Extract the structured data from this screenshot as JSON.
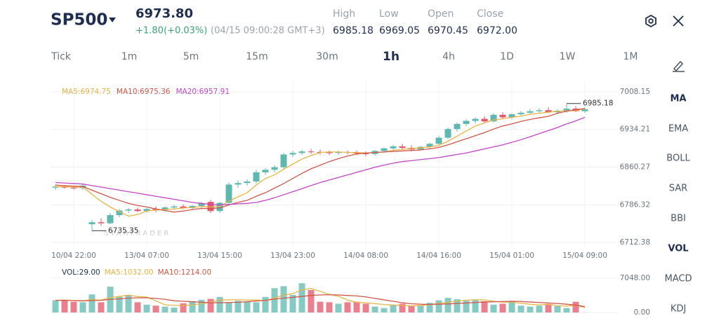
{
  "header": {
    "symbol": "SP500",
    "price": "6973.80",
    "change": "+1.80",
    "change_pct": "(+0.03%)",
    "timestamp": "(04/15 09:00:28 GMT+3)",
    "stats": [
      {
        "label": "High",
        "value": "6985.18"
      },
      {
        "label": "Low",
        "value": "6969.05"
      },
      {
        "label": "Open",
        "value": "6970.45"
      },
      {
        "label": "Close",
        "value": "6972.00"
      }
    ]
  },
  "timeframes": [
    "Tick",
    "1m",
    "5m",
    "15m",
    "30m",
    "1h",
    "4h",
    "1D",
    "1W",
    "1M"
  ],
  "indicators": [
    "MA",
    "EMA",
    "BOLL",
    "SAR",
    "BBI",
    "VOL",
    "MACD",
    "KDJ"
  ],
  "chart_data": {
    "type": "candlestick",
    "watermark": "STARTRADER",
    "up_color": "#5fb8b0",
    "down_color": "#e0566a",
    "categories": [
      null,
      null,
      "10/04 22:00",
      null,
      null,
      null,
      null,
      null,
      null,
      null,
      "13/04 07:00",
      null,
      null,
      null,
      null,
      null,
      null,
      null,
      "13/04 15:00",
      null,
      null,
      null,
      null,
      null,
      null,
      null,
      "13/04 23:00",
      null,
      null,
      null,
      null,
      null,
      null,
      null,
      "14/04 08:00",
      null,
      null,
      null,
      null,
      null,
      null,
      null,
      "14/04 16:00",
      null,
      null,
      null,
      null,
      null,
      null,
      null,
      "15/04 01:00",
      null,
      null,
      null,
      null,
      null,
      null,
      null,
      "15/04 09:00"
    ],
    "candles": [
      [
        6820,
        6826,
        6815,
        6822
      ],
      [
        6822,
        6825,
        6818,
        6820
      ],
      [
        6820,
        6824,
        6816,
        6819
      ],
      [
        6819,
        6828,
        6815,
        6824
      ],
      [
        6748,
        6756,
        6735.35,
        6752
      ],
      [
        6752,
        6760,
        6745,
        6750
      ],
      [
        6750,
        6770,
        6748,
        6766
      ],
      [
        6766,
        6778,
        6762,
        6775
      ],
      [
        6775,
        6780,
        6770,
        6777
      ],
      [
        6777,
        6781,
        6772,
        6774
      ],
      [
        6774,
        6780,
        6771,
        6778
      ],
      [
        6778,
        6783,
        6772,
        6776
      ],
      [
        6776,
        6784,
        6773,
        6781
      ],
      [
        6781,
        6786,
        6777,
        6783
      ],
      [
        6783,
        6787,
        6778,
        6780
      ],
      [
        6780,
        6786,
        6776,
        6784
      ],
      [
        6784,
        6792,
        6780,
        6789
      ],
      [
        6792,
        6796,
        6770,
        6774
      ],
      [
        6774,
        6792,
        6770,
        6790
      ],
      [
        6790,
        6830,
        6788,
        6826
      ],
      [
        6826,
        6834,
        6820,
        6829
      ],
      [
        6829,
        6836,
        6824,
        6832
      ],
      [
        6832,
        6855,
        6828,
        6850
      ],
      [
        6850,
        6858,
        6845,
        6855
      ],
      [
        6855,
        6864,
        6850,
        6860
      ],
      [
        6860,
        6888,
        6856,
        6885
      ],
      [
        6885,
        6892,
        6880,
        6888
      ],
      [
        6888,
        6894,
        6884,
        6891
      ],
      [
        6891,
        6896,
        6886,
        6890
      ],
      [
        6890,
        6895,
        6885,
        6889
      ],
      [
        6889,
        6893,
        6884,
        6888
      ],
      [
        6888,
        6892,
        6884,
        6890
      ],
      [
        6890,
        6893,
        6885,
        6889
      ],
      [
        6889,
        6893,
        6884,
        6887
      ],
      [
        6887,
        6891,
        6882,
        6886
      ],
      [
        6886,
        6894,
        6883,
        6892
      ],
      [
        6892,
        6899,
        6888,
        6897
      ],
      [
        6897,
        6904,
        6893,
        6901
      ],
      [
        6901,
        6906,
        6895,
        6898
      ],
      [
        6898,
        6903,
        6891,
        6895
      ],
      [
        6895,
        6902,
        6892,
        6900
      ],
      [
        6900,
        6908,
        6896,
        6906
      ],
      [
        6906,
        6922,
        6903,
        6918
      ],
      [
        6918,
        6938,
        6915,
        6935
      ],
      [
        6935,
        6948,
        6930,
        6945
      ],
      [
        6945,
        6954,
        6940,
        6951
      ],
      [
        6951,
        6958,
        6946,
        6955
      ],
      [
        6955,
        6960,
        6947,
        6950
      ],
      [
        6950,
        6966,
        6948,
        6963
      ],
      [
        6963,
        6968,
        6955,
        6958
      ],
      [
        6958,
        6966,
        6954,
        6964
      ],
      [
        6964,
        6970,
        6960,
        6967
      ],
      [
        6967,
        6974,
        6963,
        6970
      ],
      [
        6970,
        6976,
        6966,
        6972
      ],
      [
        6972,
        6978,
        6966,
        6968
      ],
      [
        6968,
        6974,
        6964,
        6971
      ],
      [
        6971,
        6985.18,
        6967,
        6975
      ],
      [
        6975,
        6980,
        6968,
        6970
      ],
      [
        6970,
        6977,
        6967,
        6973.8
      ]
    ],
    "high_label": "6985.18",
    "low_label": "6735.35",
    "series": [
      {
        "name": "MA5:6974.75",
        "color": "#e8b447",
        "values": [
          6822,
          6822,
          6821,
          6821,
          6807,
          6793,
          6782,
          6773,
          6764,
          6767,
          6774,
          6776,
          6777,
          6778,
          6780,
          6781,
          6783,
          6782,
          6783,
          6793,
          6802,
          6810,
          6825,
          6838,
          6845,
          6856,
          6866,
          6876,
          6883,
          6889,
          6890,
          6890,
          6889,
          6889,
          6888,
          6889,
          6890,
          6893,
          6895,
          6897,
          6898,
          6900,
          6903,
          6911,
          6921,
          6931,
          6941,
          6947,
          6953,
          6955,
          6958,
          6960,
          6964,
          6966,
          6968,
          6970,
          6971,
          6971,
          6974.75
        ]
      },
      {
        "name": "MA10:6975.36",
        "color": "#d0574a",
        "values": [
          6825,
          6824,
          6823,
          6822,
          6815,
          6808,
          6801,
          6795,
          6789,
          6785,
          6782,
          6778,
          6775,
          6772,
          6774,
          6777,
          6779,
          6779,
          6780,
          6786,
          6791,
          6795,
          6803,
          6810,
          6819,
          6828,
          6838,
          6848,
          6857,
          6864,
          6871,
          6877,
          6882,
          6886,
          6888,
          6889,
          6890,
          6891,
          6892,
          6893,
          6894,
          6896,
          6899,
          6904,
          6910,
          6916,
          6922,
          6928,
          6935,
          6941,
          6945,
          6950,
          6954,
          6957,
          6960,
          6966,
          6970,
          6973,
          6975.36
        ]
      },
      {
        "name": "MA20:6957.91",
        "color": "#c246c8",
        "values": [
          6830,
          6829,
          6828,
          6827,
          6824,
          6821,
          6818,
          6815,
          6812,
          6809,
          6806,
          6803,
          6800,
          6797,
          6794,
          6791,
          6789,
          6787,
          6786,
          6787,
          6788,
          6789,
          6791,
          6795,
          6800,
          6806,
          6812,
          6818,
          6824,
          6830,
          6835,
          6840,
          6845,
          6850,
          6855,
          6860,
          6864,
          6868,
          6871,
          6873,
          6875,
          6877,
          6879,
          6882,
          6885,
          6888,
          6892,
          6896,
          6900,
          6904,
          6909,
          6914,
          6920,
          6926,
          6932,
          6938,
          6945,
          6951,
          6957.91
        ]
      }
    ],
    "ylim": [
      6712.38,
      7008.15
    ],
    "yticks": [
      7008.15,
      6934.21,
      6860.27,
      6786.32,
      6712.38
    ],
    "grid": true,
    "volume": {
      "name": "VOL:29.00",
      "color": "#1f2d4e",
      "values": [
        2500,
        2600,
        2200,
        2100,
        3700,
        2100,
        5300,
        3200,
        3600,
        2100,
        1600,
        1400,
        1200,
        1000,
        1900,
        2300,
        2600,
        2800,
        3200,
        2100,
        2400,
        2200,
        2100,
        3200,
        5000,
        5400,
        3600,
        6000,
        4600,
        2200,
        2100,
        1800,
        2100,
        2200,
        1800,
        1200,
        900,
        1500,
        1800,
        1400,
        1500,
        2000,
        2500,
        3000,
        2700,
        2400,
        2500,
        2300,
        1600,
        1800,
        2400,
        1400,
        1200,
        1400,
        1700,
        1300,
        900,
        2200,
        29
      ],
      "ylim": [
        0,
        7048
      ],
      "yticks": [
        {
          "value": 7048,
          "label": "7048.00"
        },
        {
          "value": 0,
          "label": "0.00"
        }
      ],
      "series": [
        {
          "name": "MA5:1032.00",
          "color": "#e8b447",
          "values": [
            2500,
            2550,
            2430,
            2350,
            2620,
            2540,
            3080,
            3280,
            3580,
            3260,
            3160,
            2380,
            1580,
            1460,
            1420,
            1560,
            1800,
            2120,
            2560,
            2600,
            2620,
            2540,
            2560,
            2400,
            2980,
            3580,
            3860,
            4640,
            4920,
            4360,
            3700,
            3340,
            2560,
            2080,
            2000,
            1820,
            1640,
            1540,
            1440,
            1360,
            1420,
            1640,
            1840,
            2080,
            2340,
            2520,
            2620,
            2580,
            2300,
            2120,
            2120,
            1900,
            1680,
            1560,
            1700,
            1400,
            1300,
            1500,
            1032
          ]
        },
        {
          "name": "MA10:1214.00",
          "color": "#d0574a",
          "values": [
            2500,
            2500,
            2450,
            2400,
            2450,
            2500,
            2700,
            2800,
            2950,
            3000,
            3000,
            2900,
            2700,
            2400,
            2300,
            2200,
            2100,
            2000,
            2000,
            2050,
            2100,
            2200,
            2350,
            2500,
            2750,
            2950,
            3100,
            3300,
            3500,
            3600,
            3650,
            3600,
            3500,
            3400,
            3200,
            2900,
            2600,
            2300,
            2000,
            1800,
            1700,
            1650,
            1700,
            1750,
            1850,
            1950,
            2050,
            2150,
            2200,
            2250,
            2300,
            2250,
            2150,
            2050,
            1950,
            1850,
            1700,
            1500,
            1214
          ]
        }
      ]
    }
  }
}
